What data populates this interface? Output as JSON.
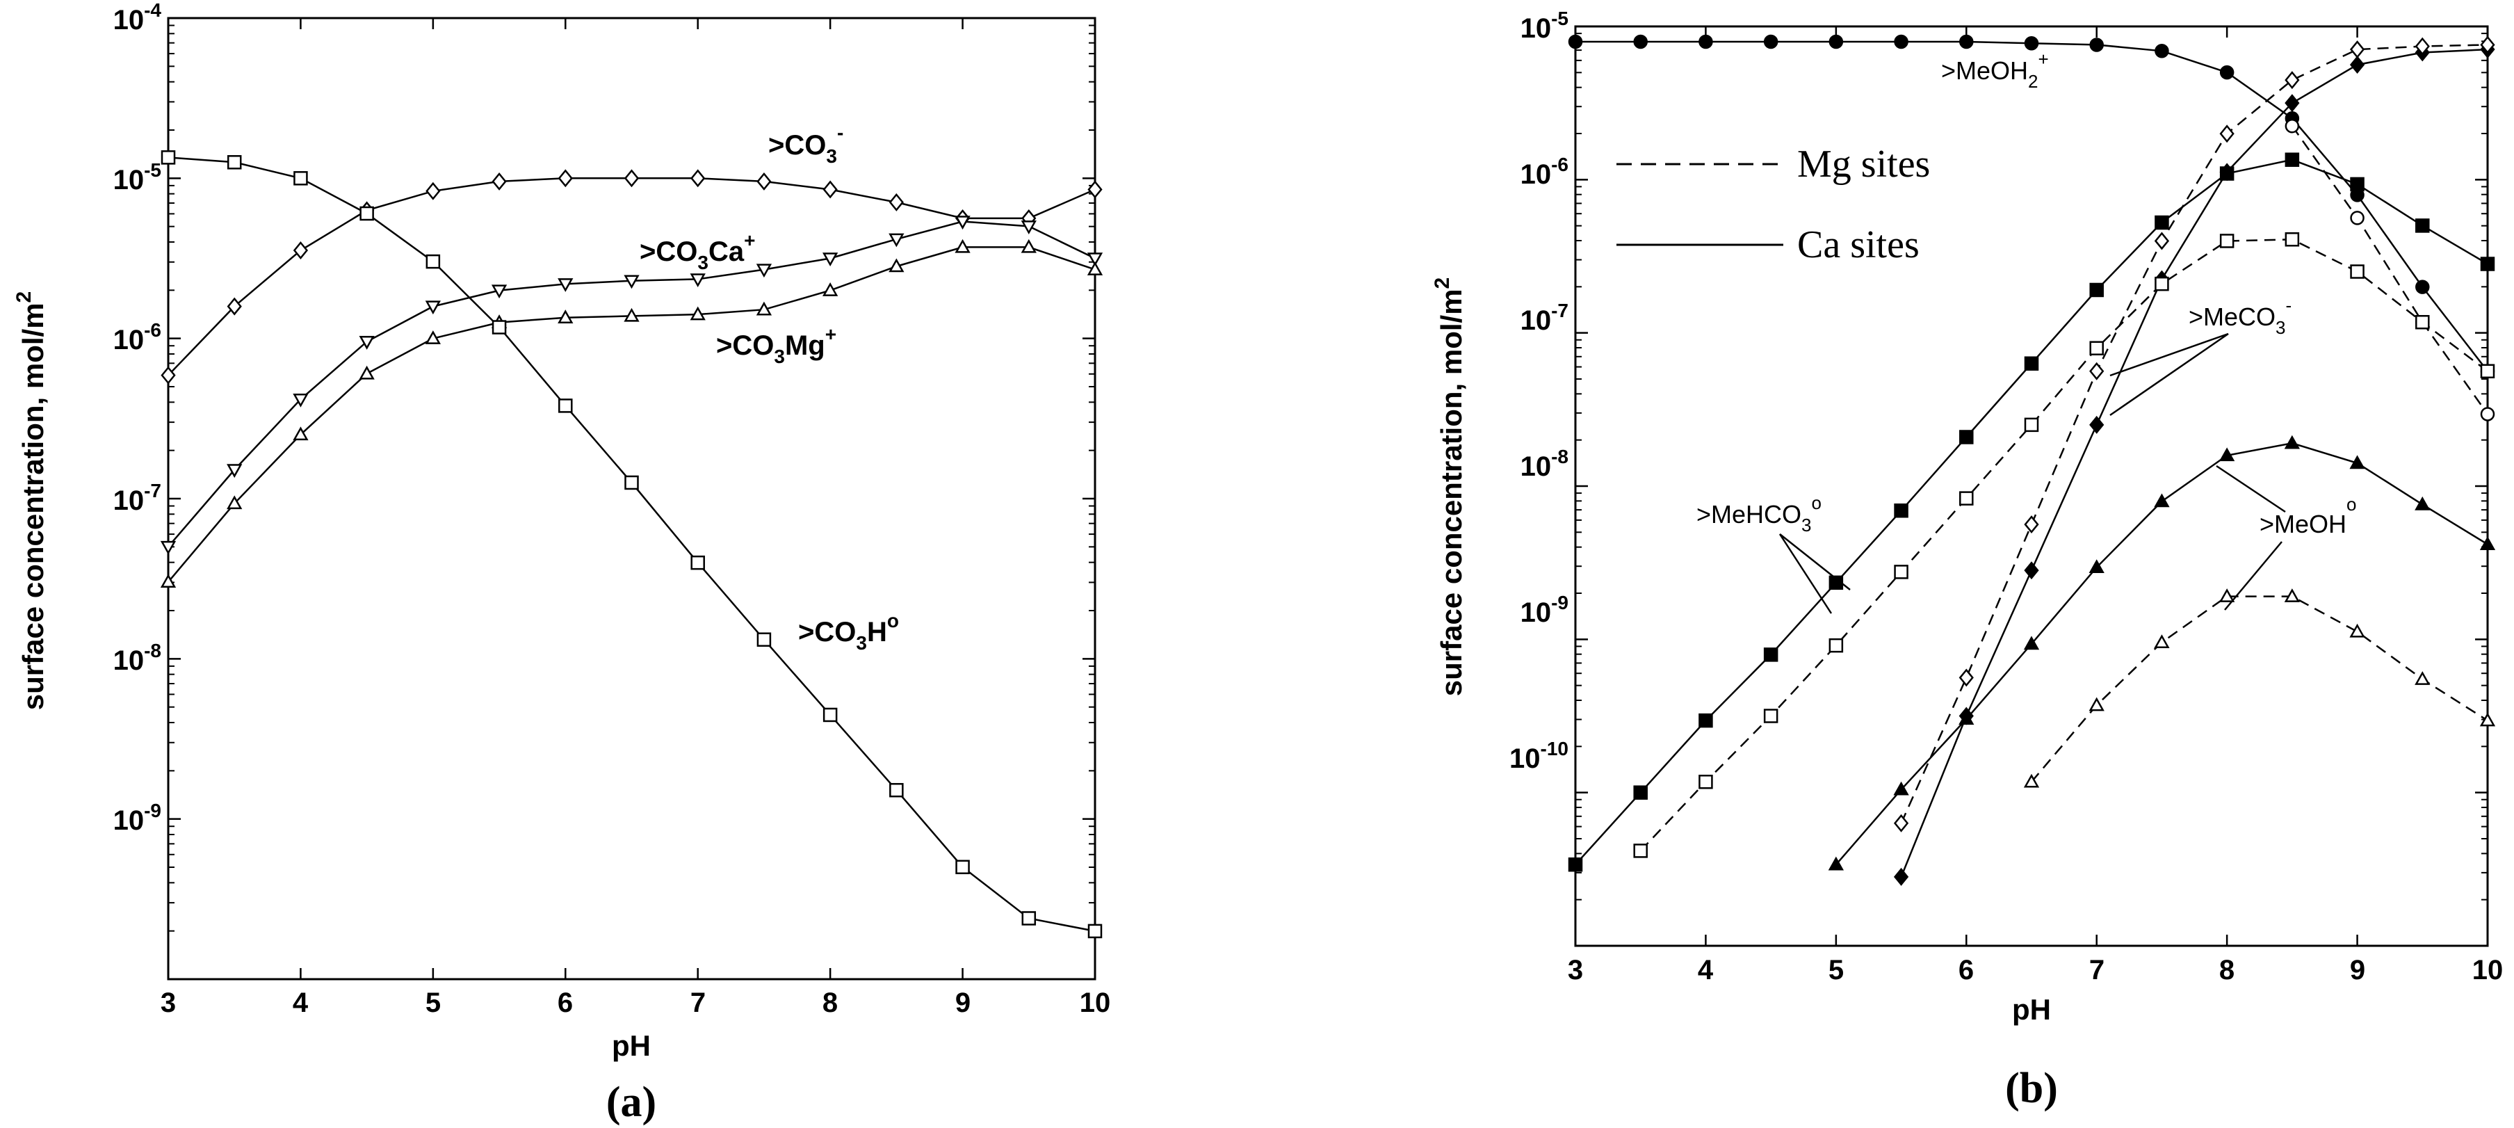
{
  "chart_data": [
    {
      "type": "line",
      "panel_label": "(a)",
      "xlabel": "pH",
      "ylabel": "surface concentration, mol/m",
      "ylabel_sup": "2",
      "xlim": [
        3,
        10
      ],
      "ylim": [
        -10,
        -4
      ],
      "yscale": "log",
      "x_ticks": [
        "3",
        "4",
        "5",
        "6",
        "7",
        "8",
        "9",
        "10"
      ],
      "y_ticks": [
        {
          "base": "10",
          "exp": "-4",
          "value": -4
        },
        {
          "base": "10",
          "exp": "-5",
          "value": -5
        },
        {
          "base": "10",
          "exp": "-6",
          "value": -6
        },
        {
          "base": "10",
          "exp": "-7",
          "value": -7
        },
        {
          "base": "10",
          "exp": "-8",
          "value": -8
        },
        {
          "base": "10",
          "exp": "-9",
          "value": -9
        }
      ],
      "x": [
        3,
        3.5,
        4,
        4.5,
        5,
        5.5,
        6,
        6.5,
        7,
        7.5,
        8,
        8.5,
        9,
        9.5,
        10
      ],
      "series": [
        {
          "name": ">CO3-",
          "marker": "diamond-open",
          "line": "solid",
          "log_values": [
            -6.23,
            -5.8,
            -5.45,
            -5.2,
            -5.08,
            -5.02,
            -5.0,
            -5.0,
            -5.0,
            -5.02,
            -5.07,
            -5.15,
            -5.25,
            -5.25,
            -5.07
          ]
        },
        {
          "name": ">CO3Ca+",
          "marker": "triangle-down-open",
          "line": "solid",
          "log_values": [
            -7.3,
            -6.82,
            -6.38,
            -6.02,
            -5.8,
            -5.7,
            -5.66,
            -5.64,
            -5.63,
            -5.57,
            -5.5,
            -5.38,
            -5.27,
            -5.3,
            -5.5
          ]
        },
        {
          "name": ">CO3Mg+",
          "marker": "triangle-up-open",
          "line": "solid",
          "log_values": [
            -7.52,
            -7.03,
            -6.6,
            -6.22,
            -6.0,
            -5.9,
            -5.87,
            -5.86,
            -5.85,
            -5.82,
            -5.7,
            -5.55,
            -5.43,
            -5.43,
            -5.57
          ]
        },
        {
          "name": ">CO3H0",
          "marker": "square-open",
          "line": "solid",
          "log_values": [
            -4.87,
            -4.9,
            -5.0,
            -5.22,
            -5.52,
            -5.93,
            -6.42,
            -6.9,
            -7.4,
            -7.88,
            -8.35,
            -8.82,
            -9.3,
            -9.62,
            -9.7
          ]
        }
      ],
      "annotations": [
        {
          "base": ">CO",
          "sub": "3",
          "sup": "-"
        },
        {
          "base": ">CO",
          "sub": "3",
          "tail": "Ca",
          "sup": "+"
        },
        {
          "base": ">CO",
          "sub": "3",
          "tail": "Mg",
          "sup": "+"
        },
        {
          "base": ">CO",
          "sub": "3",
          "tail": "H",
          "sup": "o"
        }
      ]
    },
    {
      "type": "line",
      "panel_label": "(b)",
      "xlabel": "pH",
      "ylabel": "surface concentration, mol/m",
      "ylabel_sup": "2",
      "xlim": [
        3,
        10
      ],
      "ylim": [
        -11,
        -5
      ],
      "yscale": "log",
      "x_ticks": [
        "3",
        "4",
        "5",
        "6",
        "7",
        "8",
        "9",
        "10"
      ],
      "y_ticks": [
        {
          "base": "10",
          "exp": "-5",
          "value": -5
        },
        {
          "base": "10",
          "exp": "-6",
          "value": -6
        },
        {
          "base": "10",
          "exp": "-7",
          "value": -7
        },
        {
          "base": "10",
          "exp": "-8",
          "value": -8
        },
        {
          "base": "10",
          "exp": "-9",
          "value": -9
        },
        {
          "base": "10",
          "exp": "-10",
          "value": -10
        }
      ],
      "legend": {
        "position": "upper-left",
        "items": [
          {
            "label": "Mg sites",
            "line": "dashed"
          },
          {
            "label": "Ca sites",
            "line": "solid"
          }
        ]
      },
      "series": [
        {
          "name": ">MeOH2+ Ca",
          "marker": "circle-filled",
          "line": "solid",
          "x": [
            3,
            3.5,
            4,
            4.5,
            5,
            5.5,
            6,
            6.5,
            7,
            7.5,
            8,
            8.5,
            9,
            9.5,
            10
          ],
          "log_values": [
            -5.1,
            -5.1,
            -5.1,
            -5.1,
            -5.1,
            -5.1,
            -5.1,
            -5.11,
            -5.12,
            -5.16,
            -5.3,
            -5.6,
            -6.1,
            -6.7,
            -7.25
          ]
        },
        {
          "name": ">MeCO3- Ca",
          "marker": "diamond-filled",
          "line": "solid",
          "x": [
            5.5,
            6,
            6.5,
            7,
            7.5,
            8,
            8.5,
            9,
            9.5,
            10
          ],
          "log_values": [
            -10.55,
            -9.5,
            -8.55,
            -7.6,
            -6.65,
            -5.95,
            -5.5,
            -5.25,
            -5.17,
            -5.15
          ]
        },
        {
          "name": ">MeCO3- Mg",
          "marker": "diamond-open",
          "line": "dashed",
          "x": [
            5.5,
            6,
            6.5,
            7,
            7.5,
            8,
            8.5,
            9,
            9.5,
            10
          ],
          "log_values": [
            -10.2,
            -9.25,
            -8.25,
            -7.25,
            -6.4,
            -5.7,
            -5.35,
            -5.15,
            -5.13,
            -5.12
          ]
        },
        {
          "name": ">MeOH2+ Mg",
          "marker": "circle-open",
          "line": "dashed",
          "x": [
            8.5,
            9,
            9.5,
            10
          ],
          "log_values": [
            -5.65,
            -6.25,
            -6.93,
            -7.53
          ]
        },
        {
          "name": ">MeHCO3o Ca",
          "marker": "square-filled",
          "line": "solid",
          "x": [
            3,
            3.5,
            4,
            4.5,
            5,
            5.5,
            6,
            6.5,
            7,
            7.5,
            8,
            8.5,
            9,
            9.5,
            10
          ],
          "log_values": [
            -10.47,
            -10.0,
            -9.53,
            -9.1,
            -8.63,
            -8.16,
            -7.68,
            -7.2,
            -6.72,
            -6.28,
            -5.96,
            -5.87,
            -6.03,
            -6.3,
            -6.55
          ]
        },
        {
          "name": ">MeHCO3o Mg",
          "marker": "square-open",
          "line": "dashed",
          "x": [
            3.5,
            4,
            4.5,
            5,
            5.5,
            6,
            6.5,
            7,
            7.5,
            8,
            8.5,
            9,
            9.5,
            10
          ],
          "log_values": [
            -10.38,
            -9.93,
            -9.5,
            -9.04,
            -8.56,
            -8.08,
            -7.6,
            -7.1,
            -6.68,
            -6.4,
            -6.39,
            -6.6,
            -6.93,
            -7.25
          ]
        },
        {
          "name": ">MeOHo Ca",
          "marker": "triangle-filled",
          "line": "solid",
          "x": [
            5,
            5.5,
            6,
            6.5,
            7,
            7.5,
            8,
            8.5,
            9,
            9.5,
            10
          ],
          "log_values": [
            -10.47,
            -9.98,
            -9.52,
            -9.03,
            -8.53,
            -8.1,
            -7.8,
            -7.72,
            -7.85,
            -8.12,
            -8.38
          ]
        },
        {
          "name": ">MeOHo Mg",
          "marker": "triangle-open",
          "line": "dashed",
          "x": [
            6.5,
            7,
            7.5,
            8,
            8.5,
            9,
            9.5,
            10
          ],
          "log_values": [
            -9.93,
            -9.43,
            -9.02,
            -8.72,
            -8.72,
            -8.95,
            -9.26,
            -9.53
          ]
        }
      ],
      "annotations": [
        {
          "base": ">MeOH",
          "sub": "2",
          "sup": "+"
        },
        {
          "base": ">MeCO",
          "sub": "3",
          "sup": "-"
        },
        {
          "base": ">MeHCO",
          "sub": "3",
          "sup": "o"
        },
        {
          "base": ">MeOH",
          "sub": "",
          "sup": "o"
        }
      ]
    }
  ]
}
